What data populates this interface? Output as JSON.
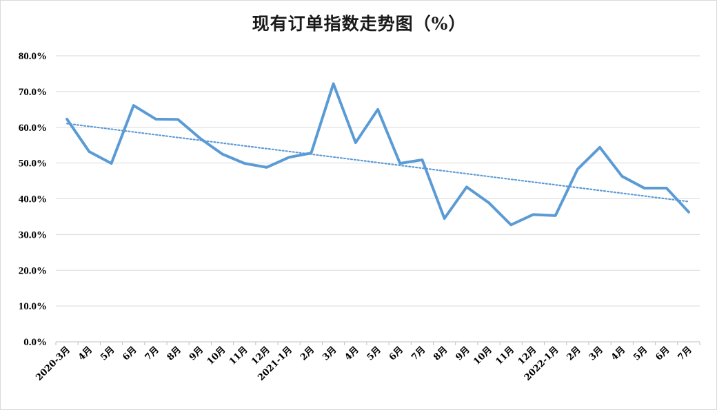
{
  "chart_data": {
    "type": "line",
    "title": "现有订单指数走势图（%）",
    "xlabel": "",
    "ylabel": "",
    "ylim": [
      0,
      80
    ],
    "y_ticks": [
      "0.0%",
      "10.0%",
      "20.0%",
      "30.0%",
      "40.0%",
      "50.0%",
      "60.0%",
      "70.0%",
      "80.0%"
    ],
    "grid": true,
    "legend": "none",
    "categories": [
      "2020-3月",
      "4月",
      "5月",
      "6月",
      "7月",
      "8月",
      "9月",
      "10月",
      "11月",
      "12月",
      "2021-1月",
      "2月",
      "3月",
      "4月",
      "5月",
      "6月",
      "7月",
      "8月",
      "9月",
      "10月",
      "11月",
      "12月",
      "2022-1月",
      "2月",
      "3月",
      "4月",
      "5月",
      "6月",
      "7月"
    ],
    "series": [
      {
        "values": [
          62.3,
          53.2,
          49.9,
          66.1,
          62.3,
          62.2,
          56.9,
          52.5,
          49.9,
          48.8,
          51.6,
          52.8,
          72.2,
          55.7,
          65.0,
          49.9,
          50.9,
          34.5,
          43.3,
          38.9,
          32.7,
          35.6,
          35.3,
          48.3,
          54.4,
          46.3,
          43.0,
          43.0,
          36.3
        ],
        "color": "#5b9bd5"
      }
    ],
    "trendline": {
      "type": "linear",
      "style": "dotted",
      "color": "#5b9bd5"
    },
    "colors": {
      "series": "#5b9bd5",
      "grid": "#d9d9d9",
      "axis": "#bfbfbf"
    }
  }
}
